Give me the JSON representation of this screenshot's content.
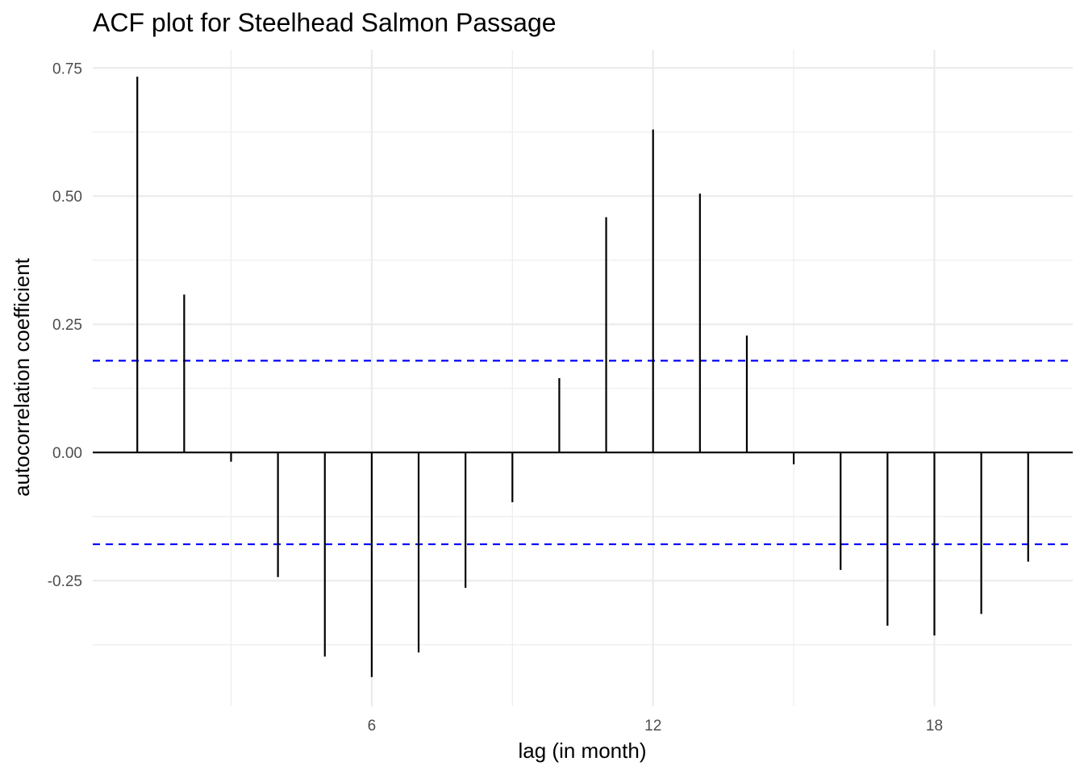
{
  "chart_data": {
    "type": "bar",
    "title": "ACF plot for Steelhead Salmon Passage",
    "xlabel": "lag (in month)",
    "ylabel": "autocorrelation coefficient",
    "x_ticks": [
      6,
      12,
      18
    ],
    "y_ticks": [
      "0.75",
      "0.50",
      "0.25",
      "0.00",
      "-0.25"
    ],
    "xlim": [
      0.05,
      20.95
    ],
    "ylim": [
      -0.495,
      0.785
    ],
    "grid": true,
    "x": [
      1,
      2,
      3,
      4,
      5,
      6,
      7,
      8,
      9,
      10,
      11,
      12,
      13,
      14,
      15,
      16,
      17,
      18,
      19,
      20
    ],
    "values": [
      0.733,
      0.308,
      -0.018,
      -0.243,
      -0.398,
      -0.438,
      -0.39,
      -0.264,
      -0.097,
      0.145,
      0.459,
      0.63,
      0.505,
      0.228,
      -0.023,
      -0.229,
      -0.338,
      -0.357,
      -0.315,
      -0.213
    ],
    "significance_bounds": [
      0.179,
      -0.179
    ],
    "colors": {
      "bars": "#000000",
      "bounds": "#0000ff",
      "grid": "#ebebeb",
      "zero_line": "#000000"
    }
  }
}
